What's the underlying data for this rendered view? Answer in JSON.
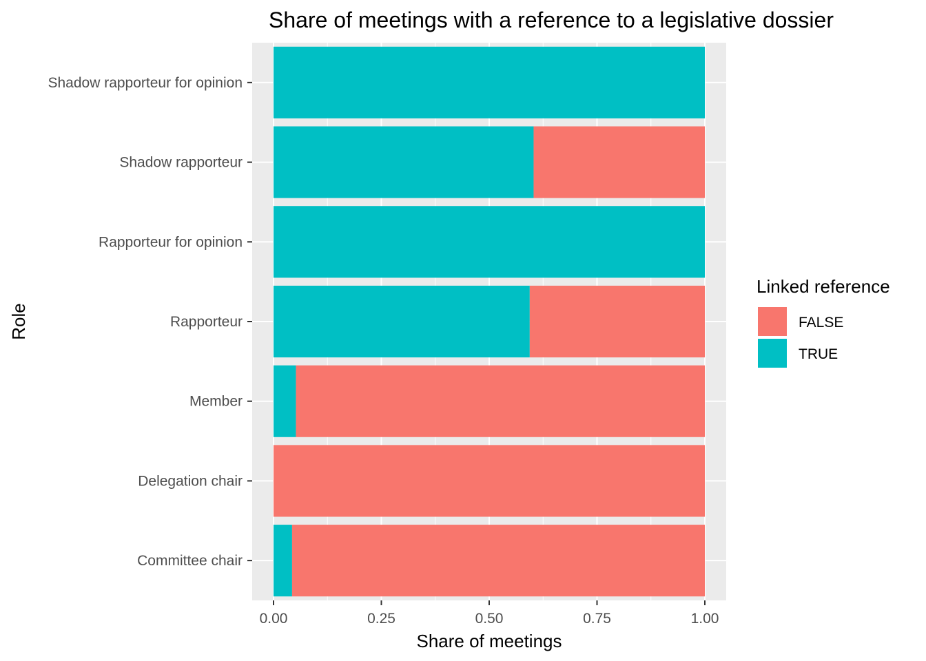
{
  "chart_data": {
    "type": "bar",
    "orientation": "horizontal",
    "stacked": true,
    "title": "Share of meetings with a reference to a legislative dossier",
    "xlabel": "Share of meetings",
    "ylabel": "Role",
    "xlim": [
      0,
      1
    ],
    "x_ticks": [
      "0.00",
      "0.25",
      "0.50",
      "0.75",
      "1.00"
    ],
    "grid": true,
    "categories": [
      "Committee chair",
      "Delegation chair",
      "Member",
      "Rapporteur",
      "Rapporteur for opinion",
      "Shadow rapporteur",
      "Shadow rapporteur for opinion"
    ],
    "series": [
      {
        "name": "TRUE",
        "color": "#00BFC4",
        "values": [
          0.043,
          0.0,
          0.052,
          0.594,
          1.0,
          0.603,
          1.0
        ]
      },
      {
        "name": "FALSE",
        "color": "#F8766D",
        "values": [
          0.957,
          1.0,
          0.948,
          0.406,
          0.0,
          0.397,
          0.0
        ]
      }
    ],
    "legend": {
      "title": "Linked reference",
      "position": "right",
      "entries": [
        {
          "label": "FALSE",
          "color": "#F8766D"
        },
        {
          "label": "TRUE",
          "color": "#00BFC4"
        }
      ]
    }
  }
}
